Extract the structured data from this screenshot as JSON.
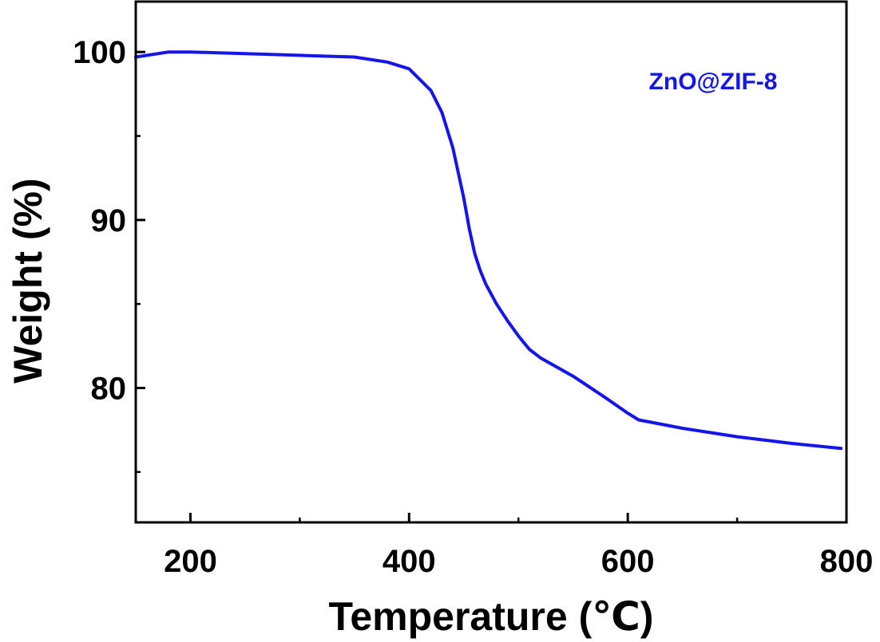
{
  "chart_data": {
    "type": "line",
    "xlabel": "Temperature (℃)",
    "ylabel": "Weight (%)",
    "xlim": [
      150,
      800
    ],
    "ylim": [
      72,
      103
    ],
    "x_ticks": [
      200,
      400,
      600,
      800
    ],
    "y_ticks": [
      80,
      90,
      100
    ],
    "x_minor_ticks": [
      300,
      500,
      700
    ],
    "y_minor_ticks": [
      75,
      85,
      95
    ],
    "grid": false,
    "legend_placement": "top-right",
    "series": [
      {
        "name": "ZnO@ZIF-8",
        "color": "#1414f0",
        "x": [
          150,
          180,
          200,
          250,
          300,
          350,
          380,
          400,
          420,
          430,
          440,
          450,
          455,
          460,
          465,
          470,
          480,
          490,
          500,
          510,
          520,
          550,
          580,
          600,
          610,
          650,
          700,
          750,
          795
        ],
        "y": [
          99.7,
          100.0,
          100.0,
          99.9,
          99.8,
          99.7,
          99.4,
          99.0,
          97.7,
          96.4,
          94.3,
          91.3,
          89.5,
          88.0,
          87.0,
          86.2,
          85.0,
          84.0,
          83.1,
          82.3,
          81.8,
          80.7,
          79.4,
          78.5,
          78.1,
          77.6,
          77.1,
          76.7,
          76.4
        ]
      }
    ]
  }
}
